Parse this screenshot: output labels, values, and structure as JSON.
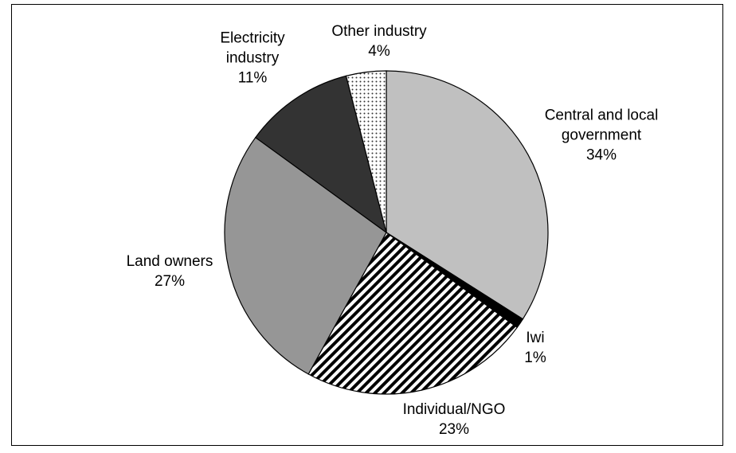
{
  "chart_data": {
    "type": "pie",
    "categories": [
      "Central and local government",
      "Iwi",
      "Individual/NGO",
      "Land owners",
      "Electricity industry",
      "Other industry"
    ],
    "values": [
      34,
      1,
      23,
      27,
      11,
      4
    ],
    "value_labels": [
      "34%",
      "1%",
      "23%",
      "27%",
      "11%",
      "4%"
    ]
  }
}
